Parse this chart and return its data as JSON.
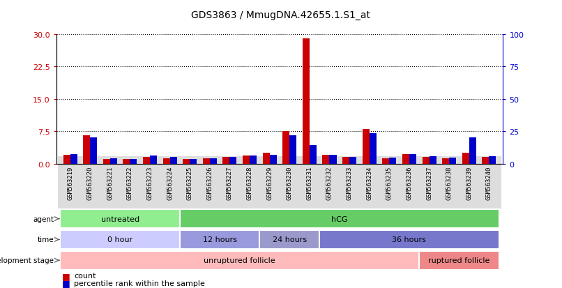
{
  "title": "GDS3863 / MmugDNA.42655.1.S1_at",
  "samples": [
    "GSM563219",
    "GSM563220",
    "GSM563221",
    "GSM563222",
    "GSM563223",
    "GSM563224",
    "GSM563225",
    "GSM563226",
    "GSM563227",
    "GSM563228",
    "GSM563229",
    "GSM563230",
    "GSM563231",
    "GSM563232",
    "GSM563233",
    "GSM563234",
    "GSM563235",
    "GSM563236",
    "GSM563237",
    "GSM563238",
    "GSM563239",
    "GSM563240"
  ],
  "count_values": [
    2.0,
    6.5,
    1.0,
    1.0,
    1.5,
    1.2,
    1.0,
    1.2,
    1.5,
    1.8,
    2.5,
    7.5,
    29.0,
    2.0,
    1.5,
    8.0,
    1.2,
    2.2,
    1.5,
    1.2,
    2.5,
    1.5
  ],
  "percentile_values": [
    7.5,
    20.0,
    4.0,
    3.5,
    6.0,
    5.0,
    3.5,
    4.0,
    5.0,
    6.0,
    7.0,
    22.0,
    14.5,
    6.5,
    5.0,
    23.5,
    4.5,
    7.5,
    5.5,
    4.5,
    20.0,
    5.5
  ],
  "left_yticks": [
    0,
    7.5,
    15,
    22.5,
    30
  ],
  "right_yticks": [
    0,
    25,
    50,
    75,
    100
  ],
  "left_color": "#cc0000",
  "right_color": "#0000cc",
  "bar_width": 0.35,
  "agent_groups": [
    {
      "label": "untreated",
      "start": 0,
      "end": 5,
      "color": "#90ee90"
    },
    {
      "label": "hCG",
      "start": 6,
      "end": 21,
      "color": "#66cc66"
    }
  ],
  "time_groups": [
    {
      "label": "0 hour",
      "start": 0,
      "end": 5,
      "color": "#ccccff"
    },
    {
      "label": "12 hours",
      "start": 6,
      "end": 9,
      "color": "#9999dd"
    },
    {
      "label": "24 hours",
      "start": 10,
      "end": 12,
      "color": "#9999cc"
    },
    {
      "label": "36 hours",
      "start": 13,
      "end": 21,
      "color": "#7777cc"
    }
  ],
  "dev_groups": [
    {
      "label": "unruptured follicle",
      "start": 0,
      "end": 17,
      "color": "#ffbbbb"
    },
    {
      "label": "ruptured follicle",
      "start": 18,
      "end": 21,
      "color": "#ee8888"
    }
  ],
  "row_labels": [
    "agent",
    "time",
    "development stage"
  ],
  "legend_items": [
    {
      "label": "count",
      "color": "#cc0000"
    },
    {
      "label": "percentile rank within the sample",
      "color": "#0000cc"
    }
  ],
  "background_color": "#ffffff",
  "plot_bg": "#ffffff",
  "left_ylim": [
    0,
    30
  ],
  "right_ylim": [
    0,
    100
  ]
}
